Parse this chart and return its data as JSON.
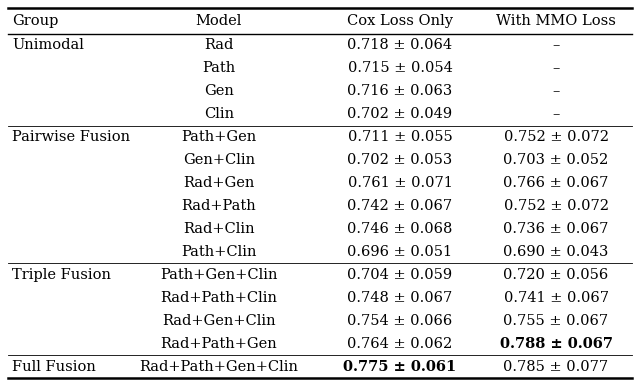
{
  "col_headers": [
    "Group",
    "Model",
    "Cox Loss Only",
    "With MMO Loss"
  ],
  "rows": [
    {
      "group": "Unimodal",
      "model": "Rad",
      "cox": "0.718 ± 0.064",
      "mmo": "–",
      "cox_bold": false,
      "mmo_bold": false
    },
    {
      "group": "",
      "model": "Path",
      "cox": "0.715 ± 0.054",
      "mmo": "–",
      "cox_bold": false,
      "mmo_bold": false
    },
    {
      "group": "",
      "model": "Gen",
      "cox": "0.716 ± 0.063",
      "mmo": "–",
      "cox_bold": false,
      "mmo_bold": false
    },
    {
      "group": "",
      "model": "Clin",
      "cox": "0.702 ± 0.049",
      "mmo": "–",
      "cox_bold": false,
      "mmo_bold": false
    },
    {
      "group": "Pairwise Fusion",
      "model": "Path+Gen",
      "cox": "0.711 ± 0.055",
      "mmo": "0.752 ± 0.072",
      "cox_bold": false,
      "mmo_bold": false
    },
    {
      "group": "",
      "model": "Gen+Clin",
      "cox": "0.702 ± 0.053",
      "mmo": "0.703 ± 0.052",
      "cox_bold": false,
      "mmo_bold": false
    },
    {
      "group": "",
      "model": "Rad+Gen",
      "cox": "0.761 ± 0.071",
      "mmo": "0.766 ± 0.067",
      "cox_bold": false,
      "mmo_bold": false
    },
    {
      "group": "",
      "model": "Rad+Path",
      "cox": "0.742 ± 0.067",
      "mmo": "0.752 ± 0.072",
      "cox_bold": false,
      "mmo_bold": false
    },
    {
      "group": "",
      "model": "Rad+Clin",
      "cox": "0.746 ± 0.068",
      "mmo": "0.736 ± 0.067",
      "cox_bold": false,
      "mmo_bold": false
    },
    {
      "group": "",
      "model": "Path+Clin",
      "cox": "0.696 ± 0.051",
      "mmo": "0.690 ± 0.043",
      "cox_bold": false,
      "mmo_bold": false
    },
    {
      "group": "Triple Fusion",
      "model": "Path+Gen+Clin",
      "cox": "0.704 ± 0.059",
      "mmo": "0.720 ± 0.056",
      "cox_bold": false,
      "mmo_bold": false
    },
    {
      "group": "",
      "model": "Rad+Path+Clin",
      "cox": "0.748 ± 0.067",
      "mmo": "0.741 ± 0.067",
      "cox_bold": false,
      "mmo_bold": false
    },
    {
      "group": "",
      "model": "Rad+Gen+Clin",
      "cox": "0.754 ± 0.066",
      "mmo": "0.755 ± 0.067",
      "cox_bold": false,
      "mmo_bold": false
    },
    {
      "group": "",
      "model": "Rad+Path+Gen",
      "cox": "0.764 ± 0.062",
      "mmo": "0.788 ± 0.067",
      "cox_bold": false,
      "mmo_bold": true
    },
    {
      "group": "Full Fusion",
      "model": "Rad+Path+Gen+Clin",
      "cox": "0.775 ± 0.061",
      "mmo": "0.785 ± 0.077",
      "cox_bold": true,
      "mmo_bold": false
    }
  ],
  "background_color": "#ffffff",
  "line_color": "#000000",
  "font_size": 10.5
}
